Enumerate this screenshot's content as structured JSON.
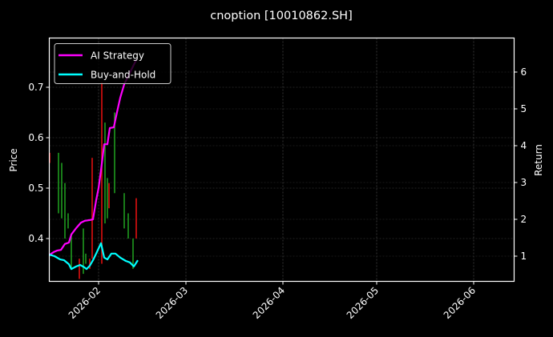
{
  "chart_data": {
    "type": "line",
    "title": "cnoption [10010862.SH]",
    "xlabel": "",
    "ylabel": "Price",
    "y2label": "Return",
    "background": "#000000",
    "grid": true,
    "legend_position": "upper left",
    "x_ticks": [
      "2026-02",
      "2026-03",
      "2026-04",
      "2026-05",
      "2026-06"
    ],
    "y_ticks": [
      0.4,
      0.5,
      0.6,
      0.7
    ],
    "y2_ticks": [
      1,
      2,
      3,
      4,
      5,
      6
    ],
    "ylim": [
      0.318,
      0.79
    ],
    "y2lim": [
      0.33,
      6.78
    ],
    "xlim": [
      "2026-01-16",
      "2026-06-15"
    ],
    "candles": {
      "type": "bar",
      "up_color": "#00ff00",
      "down_color": "#ff0000",
      "items": [
        {
          "x": 62,
          "high": 0.57,
          "low": 0.55,
          "dir": "down"
        },
        {
          "x": 73,
          "high": 0.57,
          "low": 0.45,
          "dir": "up"
        },
        {
          "x": 77,
          "high": 0.55,
          "low": 0.44,
          "dir": "up"
        },
        {
          "x": 81,
          "high": 0.51,
          "low": 0.4,
          "dir": "up"
        },
        {
          "x": 85,
          "high": 0.45,
          "low": 0.42,
          "dir": "up"
        },
        {
          "x": 89,
          "high": 0.41,
          "low": 0.34,
          "dir": "up"
        },
        {
          "x": 99,
          "high": 0.36,
          "low": 0.32,
          "dir": "down"
        },
        {
          "x": 104,
          "high": 0.42,
          "low": 0.33,
          "dir": "up"
        },
        {
          "x": 107,
          "high": 0.37,
          "low": 0.35,
          "dir": "up"
        },
        {
          "x": 112,
          "high": 0.36,
          "low": 0.34,
          "dir": "down"
        },
        {
          "x": 115,
          "high": 0.56,
          "low": 0.36,
          "dir": "down"
        },
        {
          "x": 127,
          "high": 0.71,
          "low": 0.35,
          "dir": "down"
        },
        {
          "x": 131,
          "high": 0.63,
          "low": 0.43,
          "dir": "up"
        },
        {
          "x": 134,
          "high": 0.52,
          "low": 0.44,
          "dir": "up"
        },
        {
          "x": 136,
          "high": 0.51,
          "low": 0.46,
          "dir": "down"
        },
        {
          "x": 143,
          "high": 0.65,
          "low": 0.49,
          "dir": "up"
        },
        {
          "x": 155,
          "high": 0.49,
          "low": 0.42,
          "dir": "up"
        },
        {
          "x": 160,
          "high": 0.45,
          "low": 0.4,
          "dir": "up"
        },
        {
          "x": 166,
          "high": 0.4,
          "low": 0.34,
          "dir": "up"
        },
        {
          "x": 170,
          "high": 0.48,
          "low": 0.4,
          "dir": "down"
        }
      ]
    },
    "series": [
      {
        "name": "AI Strategy",
        "color": "#ff00ff",
        "axis": "y2",
        "x": [
          62,
          67,
          71,
          76,
          81,
          86,
          89,
          95,
          101,
          106,
          112,
          116,
          120,
          123,
          126,
          130,
          134,
          137,
          142,
          146,
          150,
          155,
          160,
          165,
          170
        ],
        "values": [
          1.04,
          1.11,
          1.15,
          1.17,
          1.33,
          1.37,
          1.59,
          1.76,
          1.91,
          1.96,
          1.98,
          2.0,
          2.52,
          2.85,
          3.33,
          4.04,
          4.04,
          4.48,
          4.5,
          4.91,
          5.3,
          5.67,
          5.89,
          6.11,
          6.33
        ]
      },
      {
        "name": "Buy-and-Hold",
        "color": "#00ffff",
        "axis": "y2",
        "x": [
          62,
          68,
          75,
          80,
          86,
          89,
          95,
          100,
          105,
          108,
          112,
          116,
          120,
          126,
          130,
          134,
          139,
          144,
          150,
          157,
          162,
          167,
          172
        ],
        "values": [
          1.04,
          1.0,
          0.91,
          0.89,
          0.78,
          0.65,
          0.72,
          0.76,
          0.7,
          0.65,
          0.74,
          0.89,
          1.07,
          1.35,
          0.96,
          0.91,
          1.07,
          1.07,
          0.96,
          0.87,
          0.83,
          0.72,
          0.89
        ]
      }
    ]
  },
  "legend": {
    "items": [
      {
        "label": "AI Strategy",
        "color": "#ff00ff"
      },
      {
        "label": "Buy-and-Hold",
        "color": "#00ffff"
      }
    ]
  }
}
